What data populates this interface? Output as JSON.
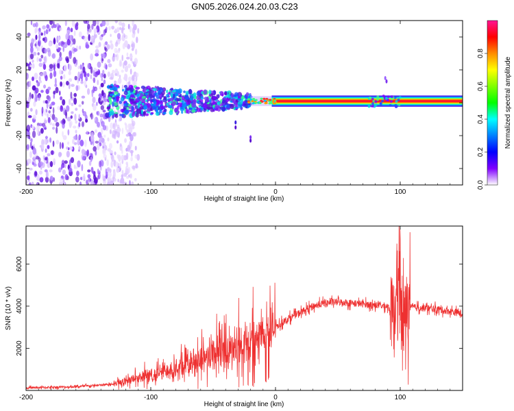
{
  "title": "GN05.2026.024.20.03.C23",
  "chart_data": [
    {
      "type": "heatmap",
      "xlabel": "Height of straight line (km)",
      "ylabel": "Frequency (Hz)",
      "xlim": [
        -200,
        150
      ],
      "ylim": [
        -50,
        50
      ],
      "x_ticks": [
        -200,
        -100,
        0,
        100
      ],
      "x_tick_labels": [
        "-200",
        "-100",
        "0",
        "100"
      ],
      "y_ticks": [
        -40,
        -20,
        0,
        20,
        40
      ],
      "y_tick_labels": [
        "-40",
        "-20",
        "0",
        "20",
        "40"
      ],
      "colorbar": {
        "label": "Normalized spectral amplitude",
        "range": [
          0,
          1
        ],
        "ticks": [
          0.0,
          0.2,
          0.4,
          0.6,
          0.8
        ],
        "tick_labels": [
          "0.0",
          "0.2",
          "0.4",
          "0.6",
          "0.8"
        ],
        "colors": [
          "#ff1493",
          "#ff0000",
          "#ff8c00",
          "#ffff00",
          "#7fff00",
          "#00ff00",
          "#00ffff",
          "#0080ff",
          "#0000ff",
          "#8000ff",
          "#ffffff"
        ]
      },
      "features": {
        "scatter_region_x": [
          -200,
          -135
        ],
        "carrier_band_x": [
          0,
          150
        ],
        "carrier_freq_hz": 1,
        "noisy_band_x": [
          -135,
          -20
        ]
      }
    },
    {
      "type": "line",
      "xlabel": "Height of straight line (km)",
      "ylabel": "SNR (10 * v/v)",
      "xlim": [
        -200,
        150
      ],
      "ylim": [
        0,
        7800
      ],
      "x_ticks": [
        -200,
        -100,
        0,
        100
      ],
      "x_tick_labels": [
        "-200",
        "-100",
        "0",
        "100"
      ],
      "y_ticks": [
        2000,
        4000,
        6000
      ],
      "y_tick_labels": [
        "2000",
        "4000",
        "6000"
      ],
      "series": [
        {
          "name": "SNR",
          "color": "#ee3030",
          "x": [
            -200,
            -180,
            -160,
            -140,
            -130,
            -120,
            -110,
            -100,
            -90,
            -80,
            -70,
            -60,
            -50,
            -40,
            -30,
            -20,
            -15,
            -10,
            -5,
            0,
            10,
            20,
            30,
            40,
            50,
            60,
            70,
            80,
            90,
            95,
            98,
            100,
            102,
            105,
            110,
            120,
            130,
            140,
            150
          ],
          "y": [
            120,
            150,
            180,
            250,
            300,
            450,
            600,
            700,
            900,
            1100,
            1300,
            1500,
            1700,
            1900,
            2100,
            2300,
            2600,
            2500,
            2900,
            3000,
            3400,
            3700,
            4000,
            4150,
            4200,
            4150,
            4100,
            4050,
            4000,
            3500,
            5500,
            4000,
            3000,
            3900,
            3950,
            3900,
            3850,
            3750,
            3650
          ]
        }
      ]
    }
  ]
}
